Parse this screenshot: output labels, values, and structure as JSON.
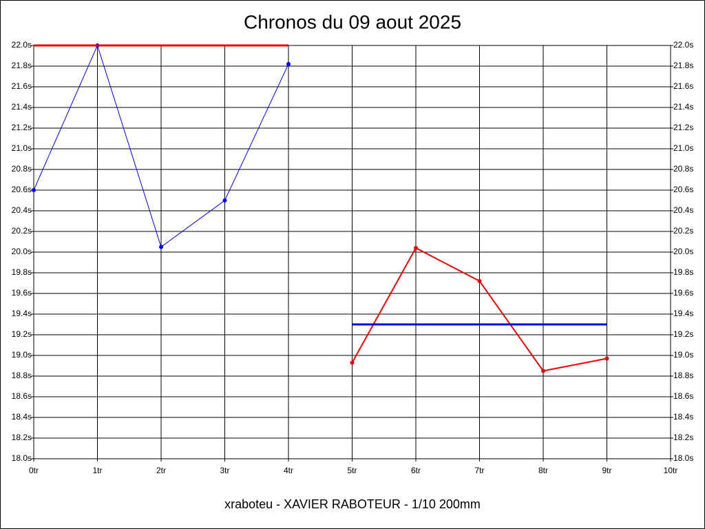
{
  "chart_data": {
    "type": "line",
    "title": "Chronos du 09 aout 2025",
    "xlabel": "xraboteu - XAVIER RABOTEUR - 1/10 200mm",
    "xlim": [
      0,
      10
    ],
    "xticks": [
      {
        "value": 0,
        "label": "0tr"
      },
      {
        "value": 1,
        "label": "1tr"
      },
      {
        "value": 2,
        "label": "2tr"
      },
      {
        "value": 3,
        "label": "3tr"
      },
      {
        "value": 4,
        "label": "4tr"
      },
      {
        "value": 5,
        "label": "5tr"
      },
      {
        "value": 6,
        "label": "6tr"
      },
      {
        "value": 7,
        "label": "7tr"
      },
      {
        "value": 8,
        "label": "8tr"
      },
      {
        "value": 9,
        "label": "9tr"
      },
      {
        "value": 10,
        "label": "10tr"
      }
    ],
    "ylim": [
      18,
      22
    ],
    "yticks": [
      {
        "value": 18,
        "label": "18.0s"
      },
      {
        "value": 18.2,
        "label": "18.2s"
      },
      {
        "value": 18.4,
        "label": "18.4s"
      },
      {
        "value": 18.6,
        "label": "18.6s"
      },
      {
        "value": 18.8,
        "label": "18.8s"
      },
      {
        "value": 19,
        "label": "19.0s"
      },
      {
        "value": 19.2,
        "label": "19.2s"
      },
      {
        "value": 19.4,
        "label": "19.4s"
      },
      {
        "value": 19.6,
        "label": "19.6s"
      },
      {
        "value": 19.8,
        "label": "19.8s"
      },
      {
        "value": 20,
        "label": "20.0s"
      },
      {
        "value": 20.2,
        "label": "20.2s"
      },
      {
        "value": 20.4,
        "label": "20.4s"
      },
      {
        "value": 20.6,
        "label": "20.6s"
      },
      {
        "value": 20.8,
        "label": "20.8s"
      },
      {
        "value": 21,
        "label": "21.0s"
      },
      {
        "value": 21.2,
        "label": "21.2s"
      },
      {
        "value": 21.4,
        "label": "21.4s"
      },
      {
        "value": 21.6,
        "label": "21.6s"
      },
      {
        "value": 21.8,
        "label": "21.8s"
      },
      {
        "value": 22,
        "label": "22.0s"
      }
    ],
    "y2lim": [
      18,
      22
    ],
    "y2ticks": [
      {
        "value": 18,
        "label": "18.0s"
      },
      {
        "value": 18.2,
        "label": "18.2s"
      },
      {
        "value": 18.4,
        "label": "18.4s"
      },
      {
        "value": 18.6,
        "label": "18.6s"
      },
      {
        "value": 18.8,
        "label": "18.8s"
      },
      {
        "value": 19,
        "label": "19.0s"
      },
      {
        "value": 19.2,
        "label": "19.2s"
      },
      {
        "value": 19.4,
        "label": "19.4s"
      },
      {
        "value": 19.6,
        "label": "19.6s"
      },
      {
        "value": 19.8,
        "label": "19.8s"
      },
      {
        "value": 20,
        "label": "20.0s"
      },
      {
        "value": 20.2,
        "label": "20.2s"
      },
      {
        "value": 20.4,
        "label": "20.4s"
      },
      {
        "value": 20.6,
        "label": "20.6s"
      },
      {
        "value": 20.8,
        "label": "20.8s"
      },
      {
        "value": 21,
        "label": "21.0s"
      },
      {
        "value": 21.2,
        "label": "21.2s"
      },
      {
        "value": 21.4,
        "label": "21.4s"
      },
      {
        "value": 21.6,
        "label": "21.6s"
      },
      {
        "value": 21.8,
        "label": "21.8s"
      },
      {
        "value": 22,
        "label": "22.0s"
      }
    ],
    "grid": true,
    "series": [
      {
        "color": "#0000ee",
        "width": 1,
        "markers": true,
        "x": [
          0,
          1,
          2,
          3,
          4
        ],
        "values": [
          20.6,
          22.0,
          20.05,
          20.5,
          21.82
        ]
      },
      {
        "color": "#ee0000",
        "width": 3,
        "markers": false,
        "x": [
          0,
          4
        ],
        "values": [
          22.0,
          22.0
        ]
      },
      {
        "color": "#ee0000",
        "width": 2,
        "markers": true,
        "x": [
          5,
          6,
          7,
          8,
          9
        ],
        "values": [
          18.93,
          20.04,
          19.72,
          18.85,
          18.97
        ]
      },
      {
        "color": "#0000ee",
        "width": 3,
        "markers": false,
        "x": [
          5,
          9
        ],
        "values": [
          19.3,
          19.3
        ]
      }
    ]
  }
}
